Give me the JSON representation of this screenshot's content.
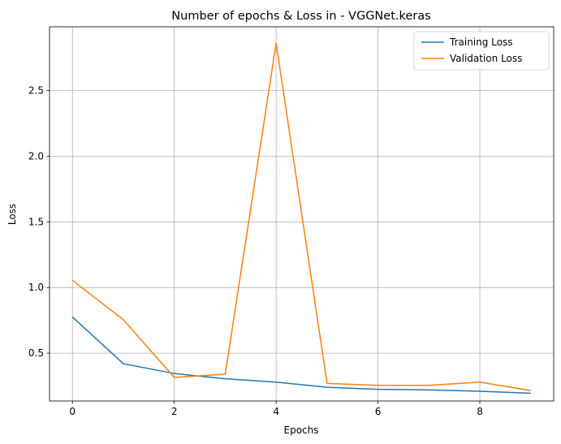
{
  "chart_data": {
    "type": "line",
    "title": "Number of epochs & Loss in - VGGNet.keras",
    "xlabel": "Epochs",
    "ylabel": "Loss",
    "xlim": [
      -0.45,
      9.45
    ],
    "ylim": [
      0.136,
      2.985
    ],
    "xticks": [
      0,
      2,
      4,
      6,
      8
    ],
    "yticks": [
      0.5,
      1.0,
      1.5,
      2.0,
      2.5
    ],
    "ytick_labels": [
      "0.5",
      "1.0",
      "1.5",
      "2.0",
      "2.5"
    ],
    "grid": true,
    "legend_position": "top-right",
    "x": [
      0,
      1,
      2,
      3,
      4,
      5,
      6,
      7,
      8,
      9
    ],
    "series": [
      {
        "name": "Training Loss",
        "color": "#1f77b4",
        "values": [
          0.775,
          0.42,
          0.345,
          0.305,
          0.28,
          0.24,
          0.225,
          0.22,
          0.21,
          0.195
        ]
      },
      {
        "name": "Validation Loss",
        "color": "#ff7f0e",
        "values": [
          1.055,
          0.755,
          0.315,
          0.34,
          2.86,
          0.27,
          0.255,
          0.255,
          0.28,
          0.215
        ]
      }
    ]
  }
}
